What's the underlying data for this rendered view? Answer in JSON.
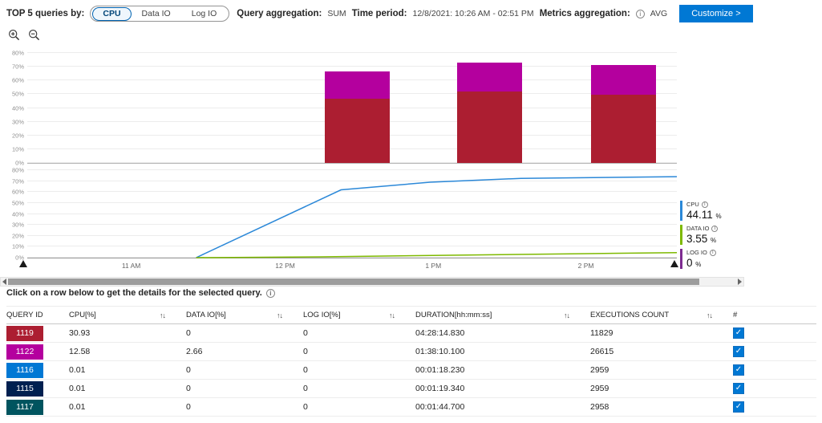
{
  "toolbar": {
    "top5_label": "TOP 5 queries by:",
    "toggle": {
      "options": [
        "CPU",
        "Data IO",
        "Log IO"
      ],
      "selected": "CPU"
    },
    "query_aggregation_label": "Query aggregation:",
    "query_aggregation_value": "SUM",
    "time_period_label": "Time period:",
    "time_period_value": "12/8/2021: 10:26 AM - 02:51 PM",
    "metrics_aggregation_label": "Metrics aggregation:",
    "metrics_aggregation_value": "AVG",
    "customize_button": "Customize >"
  },
  "icons": [
    "zoom-in-icon",
    "zoom-out-icon",
    "info-icon",
    "sort-icon",
    "checkbox-checked-icon",
    "scroll-left-icon",
    "scroll-right-icon",
    "range-handle-icon"
  ],
  "colors": {
    "accent": "#0078d4",
    "cpu_line": "#2b88d8",
    "data_io_line": "#7eb900",
    "log_io": "#7d2b90",
    "query_1119": "#ac1e31",
    "query_1122": "#b4009e",
    "query_1116": "#0078d4",
    "query_1115": "#002050",
    "query_1117": "#00545f"
  },
  "chart_data": [
    {
      "type": "bar",
      "stacked": true,
      "title": "Top queries stacked usage over time",
      "ylabel": "%",
      "ylim": [
        0,
        80
      ],
      "ytick_step": 10,
      "grid": true,
      "bar_width_pct": 10,
      "bar_x_pct": [
        45.8,
        66.2,
        86.8
      ],
      "series": [
        {
          "name": "Query 1119 CPU",
          "color": "#ac1e31",
          "values": [
            47,
            52,
            49.5
          ]
        },
        {
          "name": "Query 1122 CPU",
          "color": "#b4009e",
          "values": [
            19.5,
            21,
            21.5
          ]
        }
      ]
    },
    {
      "type": "line",
      "ylim": [
        0,
        80
      ],
      "ytick_step": 10,
      "grid": true,
      "xticks": [
        {
          "label": "11 AM",
          "x_pct": 16
        },
        {
          "label": "12 PM",
          "x_pct": 39.7
        },
        {
          "label": "1 PM",
          "x_pct": 62.5
        },
        {
          "label": "2 PM",
          "x_pct": 86
        }
      ],
      "series": [
        {
          "name": "CPU",
          "color": "#2b88d8",
          "points": [
            [
              26,
              0
            ],
            [
              48.3,
              62
            ],
            [
              62,
              69
            ],
            [
              76,
              72.5
            ],
            [
              100,
              74
            ]
          ]
        },
        {
          "name": "DATA IO",
          "color": "#7eb900",
          "points": [
            [
              26,
              0
            ],
            [
              45,
              0.7
            ],
            [
              65,
              2.2
            ],
            [
              85,
              3.6
            ],
            [
              100,
              4.6
            ]
          ]
        }
      ]
    }
  ],
  "legend": {
    "items": [
      {
        "name": "CPU",
        "value": "44.11",
        "unit": "%",
        "color": "#2b88d8"
      },
      {
        "name": "DATA IO",
        "value": "3.55",
        "unit": "%",
        "color": "#7eb900"
      },
      {
        "name": "LOG IO",
        "value": "0",
        "unit": "%",
        "color": "#7d2b90"
      }
    ]
  },
  "hint": "Click on a row below to get the details for the selected query.",
  "table": {
    "columns": [
      {
        "label": "QUERY ID",
        "sortable": false
      },
      {
        "label": "CPU[%]",
        "sortable": true
      },
      {
        "label": "DATA IO[%]",
        "sortable": true
      },
      {
        "label": "LOG IO[%]",
        "sortable": true
      },
      {
        "label": "DURATION[hh:mm:ss]",
        "sortable": true
      },
      {
        "label": "EXECUTIONS COUNT",
        "sortable": true
      },
      {
        "label": "#",
        "sortable": false
      }
    ],
    "rows": [
      {
        "query_id": "1119",
        "color": "#ac1e31",
        "cpu": "30.93",
        "data_io": "0",
        "log_io": "0",
        "duration": "04:28:14.830",
        "executions": "11829",
        "checked": true
      },
      {
        "query_id": "1122",
        "color": "#b4009e",
        "cpu": "12.58",
        "data_io": "2.66",
        "log_io": "0",
        "duration": "01:38:10.100",
        "executions": "26615",
        "checked": true
      },
      {
        "query_id": "1116",
        "color": "#0078d4",
        "cpu": "0.01",
        "data_io": "0",
        "log_io": "0",
        "duration": "00:01:18.230",
        "executions": "2959",
        "checked": true
      },
      {
        "query_id": "1115",
        "color": "#002050",
        "cpu": "0.01",
        "data_io": "0",
        "log_io": "0",
        "duration": "00:01:19.340",
        "executions": "2959",
        "checked": true
      },
      {
        "query_id": "1117",
        "color": "#00545f",
        "cpu": "0.01",
        "data_io": "0",
        "log_io": "0",
        "duration": "00:01:44.700",
        "executions": "2958",
        "checked": true
      }
    ]
  }
}
